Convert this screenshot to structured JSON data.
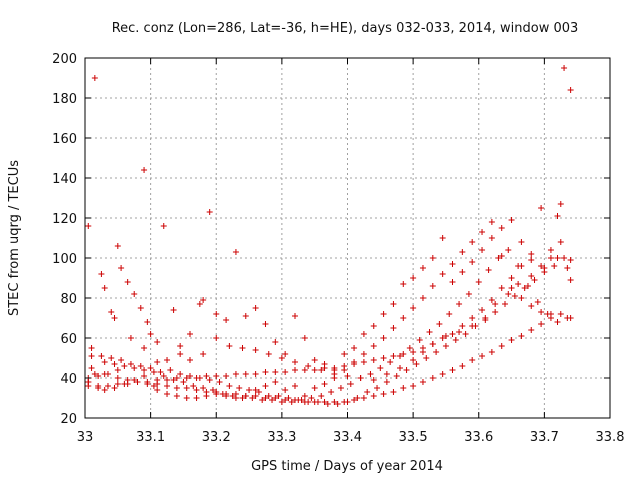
{
  "chart_data": {
    "type": "scatter",
    "title": "Rec. conz (Lon=286, Lat=-36, h=HE), days 032-033, 2014, window 003",
    "xlabel": "GPS time / Days of year 2014",
    "ylabel": "STEC from uqrg / TECUs",
    "xlim": [
      33,
      33.8
    ],
    "ylim": [
      20,
      200
    ],
    "xticks": [
      33,
      33.1,
      33.2,
      33.3,
      33.4,
      33.5,
      33.6,
      33.7,
      33.8
    ],
    "xtick_labels": [
      "33",
      "33.1",
      "33.2",
      "33.3",
      "33.4",
      "33.5",
      "33.6",
      "33.7",
      "33.8"
    ],
    "yticks": [
      20,
      40,
      60,
      80,
      100,
      120,
      140,
      160,
      180,
      200
    ],
    "ytick_labels": [
      "20",
      "40",
      "60",
      "80",
      "100",
      "120",
      "140",
      "160",
      "180",
      "200"
    ],
    "grid": true,
    "marker": "+",
    "color": "#cc0000",
    "series": [
      {
        "name": "STEC",
        "x": [
          33.005,
          33.01,
          33.015,
          33.025,
          33.03,
          33.04,
          33.045,
          33.05,
          33.055,
          33.065,
          33.075,
          33.085,
          33.09,
          33.095,
          33.1,
          33.11,
          33.12,
          33.135,
          33.145,
          33.16,
          33.175,
          33.18,
          33.19,
          33.2,
          33.215,
          33.23,
          33.245,
          33.26,
          33.275,
          33.29,
          33.305,
          33.32,
          33.335,
          33.35,
          33.365,
          33.38,
          33.395,
          33.41,
          33.425,
          33.44,
          33.455,
          33.47,
          33.485,
          33.5,
          33.515,
          33.53,
          33.545,
          33.56,
          33.575,
          33.59,
          33.605,
          33.62,
          33.635,
          33.65,
          33.665,
          33.68,
          33.695,
          33.71,
          33.72,
          33.73,
          33.74,
          33.01,
          33.025,
          33.04,
          33.055,
          33.07,
          33.085,
          33.1,
          33.115,
          33.13,
          33.145,
          33.16,
          33.175,
          33.19,
          33.205,
          33.22,
          33.235,
          33.25,
          33.265,
          33.28,
          33.295,
          33.31,
          33.325,
          33.34,
          33.355,
          33.37,
          33.385,
          33.4,
          33.415,
          33.43,
          33.445,
          33.46,
          33.475,
          33.49,
          33.505,
          33.52,
          33.535,
          33.55,
          33.565,
          33.58,
          33.595,
          33.61,
          33.625,
          33.64,
          33.655,
          33.67,
          33.685,
          33.7,
          33.715,
          33.73,
          33.01,
          33.03,
          33.05,
          33.07,
          33.09,
          33.11,
          33.125,
          33.145,
          33.16,
          33.18,
          33.2,
          33.22,
          33.24,
          33.26,
          33.28,
          33.3,
          33.32,
          33.34,
          33.36,
          33.38,
          33.4,
          33.42,
          33.44,
          33.46,
          33.48,
          33.5,
          33.515,
          33.53,
          33.55,
          33.57,
          33.59,
          33.61,
          33.625,
          33.645,
          33.66,
          33.68,
          33.7,
          33.72,
          33.735,
          33.005,
          33.02,
          33.035,
          33.05,
          33.065,
          33.08,
          33.095,
          33.11,
          33.125,
          33.14,
          33.155,
          33.17,
          33.185,
          33.2,
          33.215,
          33.23,
          33.245,
          33.26,
          33.275,
          33.29,
          33.305,
          33.32,
          33.335,
          33.35,
          33.365,
          33.38,
          33.395,
          33.41,
          33.425,
          33.44,
          33.455,
          33.47,
          33.485,
          33.5,
          33.515,
          33.53,
          33.545,
          33.56,
          33.575,
          33.59,
          33.605,
          33.62,
          33.635,
          33.65,
          33.665,
          33.68,
          33.695,
          33.71,
          33.725,
          33.74,
          33.005,
          33.02,
          33.035,
          33.05,
          33.065,
          33.08,
          33.095,
          33.11,
          33.125,
          33.14,
          33.155,
          33.17,
          33.185,
          33.2,
          33.215,
          33.23,
          33.245,
          33.26,
          33.275,
          33.29,
          33.305,
          33.32,
          33.335,
          33.35,
          33.365,
          33.38,
          33.395,
          33.41,
          33.425,
          33.44,
          33.455,
          33.47,
          33.485,
          33.5,
          33.515,
          33.53,
          33.545,
          33.56,
          33.575,
          33.59,
          33.605,
          33.62,
          33.635,
          33.65,
          33.665,
          33.68,
          33.695,
          33.71,
          33.725,
          33.74,
          33.005,
          33.015,
          33.03,
          33.045,
          33.06,
          33.075,
          33.09,
          33.105,
          33.12,
          33.135,
          33.15,
          33.165,
          33.18,
          33.195,
          33.21,
          33.225,
          33.24,
          33.255,
          33.27,
          33.285,
          33.3,
          33.315,
          33.33,
          33.345,
          33.36,
          33.375,
          33.39,
          33.405,
          33.42,
          33.435,
          33.45,
          33.465,
          33.48,
          33.495,
          33.51,
          33.525,
          33.54,
          33.555,
          33.57,
          33.585,
          33.6,
          33.615,
          33.63,
          33.645,
          33.66,
          33.675,
          33.69,
          33.705,
          33.72,
          33.735,
          33.005,
          33.02,
          33.03,
          33.045,
          33.06,
          33.075,
          33.09,
          33.105,
          33.11,
          33.125,
          33.14,
          33.155,
          33.17,
          33.185,
          33.2,
          33.215,
          33.23,
          33.245,
          33.26,
          33.275,
          33.29,
          33.305,
          33.32,
          33.335,
          33.35,
          33.365,
          33.38,
          33.395,
          33.41,
          33.425,
          33.44,
          33.455,
          33.47,
          33.485,
          33.5,
          33.515,
          33.53,
          33.545,
          33.56,
          33.575,
          33.59,
          33.605,
          33.62,
          33.635,
          33.65,
          33.665,
          33.68,
          33.695,
          33.71,
          33.725,
          33.74
        ],
        "y": [
          116,
          51,
          190,
          92,
          85,
          73,
          70,
          106,
          95,
          88,
          82,
          75,
          144,
          68,
          62,
          58,
          116,
          74,
          56,
          62,
          77,
          79,
          123,
          72,
          69,
          103,
          71,
          75,
          67,
          58,
          52,
          71,
          60,
          49,
          47,
          44,
          52,
          55,
          62,
          66,
          72,
          77,
          87,
          90,
          95,
          100,
          110,
          88,
          93,
          98,
          104,
          110,
          115,
          119,
          108,
          102,
          125,
          100,
          121,
          195,
          184,
          55,
          51,
          50,
          49,
          47,
          46,
          45,
          43,
          44,
          42,
          41,
          40,
          39,
          38,
          36,
          35,
          34,
          33,
          31,
          31,
          30,
          29,
          28,
          28,
          27,
          27,
          28,
          30,
          33,
          35,
          38,
          41,
          44,
          47,
          50,
          53,
          56,
          59,
          62,
          66,
          69,
          73,
          77,
          81,
          85,
          89,
          93,
          96,
          100,
          45,
          42,
          44,
          60,
          55,
          48,
          49,
          52,
          49,
          52,
          60,
          56,
          55,
          54,
          52,
          50,
          48,
          46,
          44,
          42,
          41,
          40,
          39,
          42,
          45,
          49,
          53,
          57,
          61,
          63,
          66,
          70,
          77,
          82,
          87,
          91,
          95,
          100,
          95,
          40,
          41,
          42,
          40,
          39,
          38,
          37,
          37,
          36,
          35,
          35,
          34,
          33,
          33,
          32,
          32,
          31,
          31,
          30,
          30,
          29,
          29,
          28,
          28,
          28,
          28,
          28,
          29,
          30,
          31,
          32,
          33,
          35,
          36,
          38,
          40,
          42,
          44,
          46,
          49,
          51,
          53,
          56,
          59,
          61,
          64,
          67,
          70,
          72,
          70,
          36,
          36,
          36,
          37,
          37,
          38,
          38,
          39,
          39,
          40,
          40,
          40,
          41,
          41,
          41,
          42,
          42,
          42,
          43,
          43,
          43,
          44,
          44,
          44,
          45,
          45,
          46,
          47,
          48,
          49,
          50,
          51,
          52,
          53,
          55,
          57,
          60,
          62,
          66,
          70,
          74,
          79,
          85,
          90,
          96,
          99,
          96,
          104,
          108,
          89,
          38,
          42,
          48,
          47,
          46,
          45,
          44,
          43,
          41,
          39,
          38,
          36,
          35,
          34,
          32,
          31,
          30,
          30,
          29,
          29,
          28,
          28,
          29,
          30,
          31,
          33,
          35,
          37,
          40,
          42,
          45,
          48,
          51,
          55,
          59,
          63,
          67,
          72,
          77,
          82,
          88,
          94,
          100,
          104,
          96,
          86,
          78,
          72,
          68,
          70,
          38,
          35,
          34,
          35,
          37,
          39,
          41,
          36,
          34,
          32,
          31,
          30,
          30,
          31,
          32,
          31,
          30,
          31,
          34,
          36,
          38,
          34,
          36,
          31,
          35,
          37,
          40,
          44,
          48,
          52,
          56,
          60,
          65,
          70,
          75,
          80,
          86,
          92,
          97,
          103,
          108,
          113,
          118,
          101,
          85,
          80,
          76,
          73,
          72,
          127,
          99
        ]
      }
    ]
  }
}
